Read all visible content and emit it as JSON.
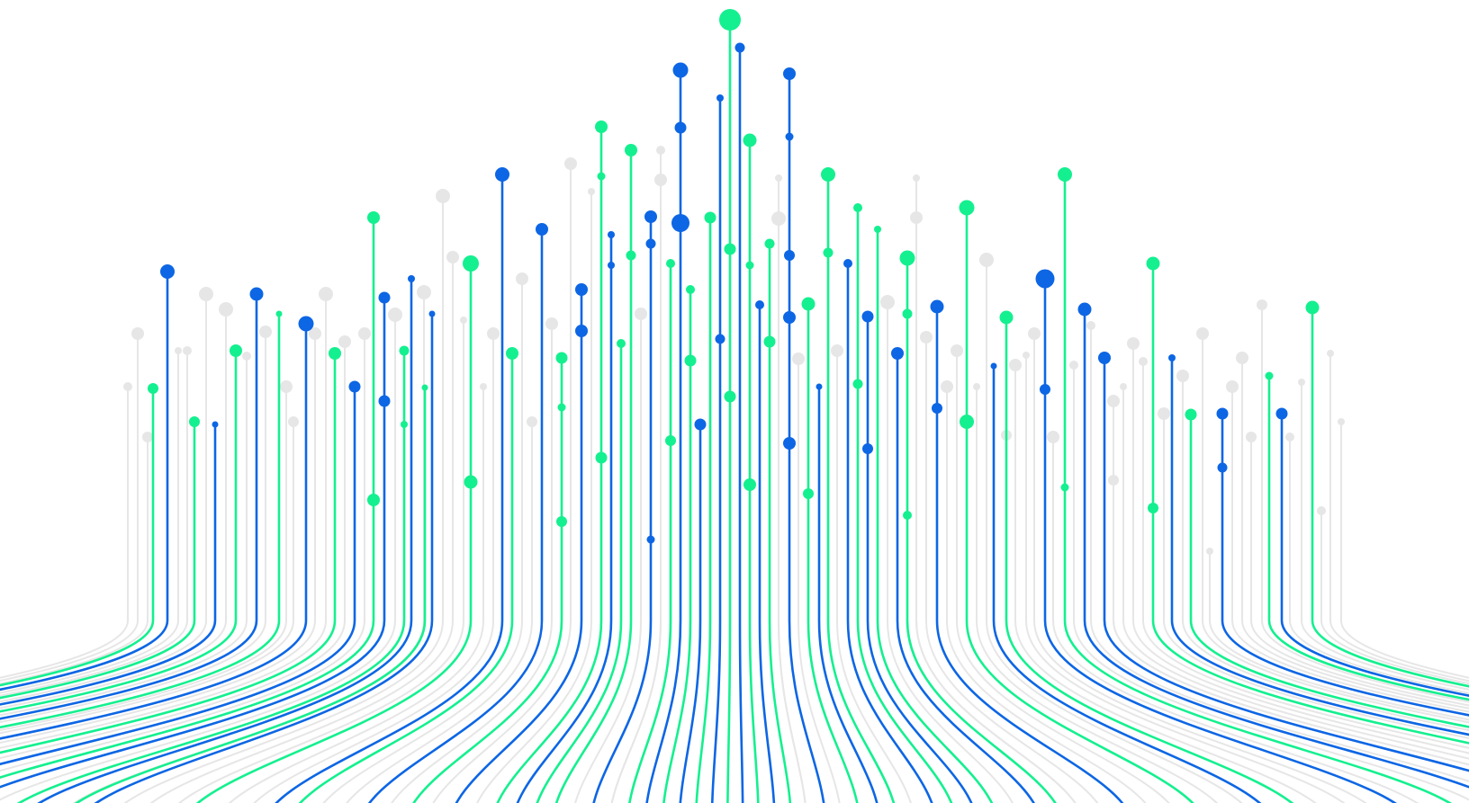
{
  "artwork": {
    "name": "abstract-data-stream-illustration",
    "palette": {
      "background": "#ffffff",
      "blue": "#0d66e4",
      "green": "#14f08f",
      "ghost": "#e6e6e6"
    }
  }
}
